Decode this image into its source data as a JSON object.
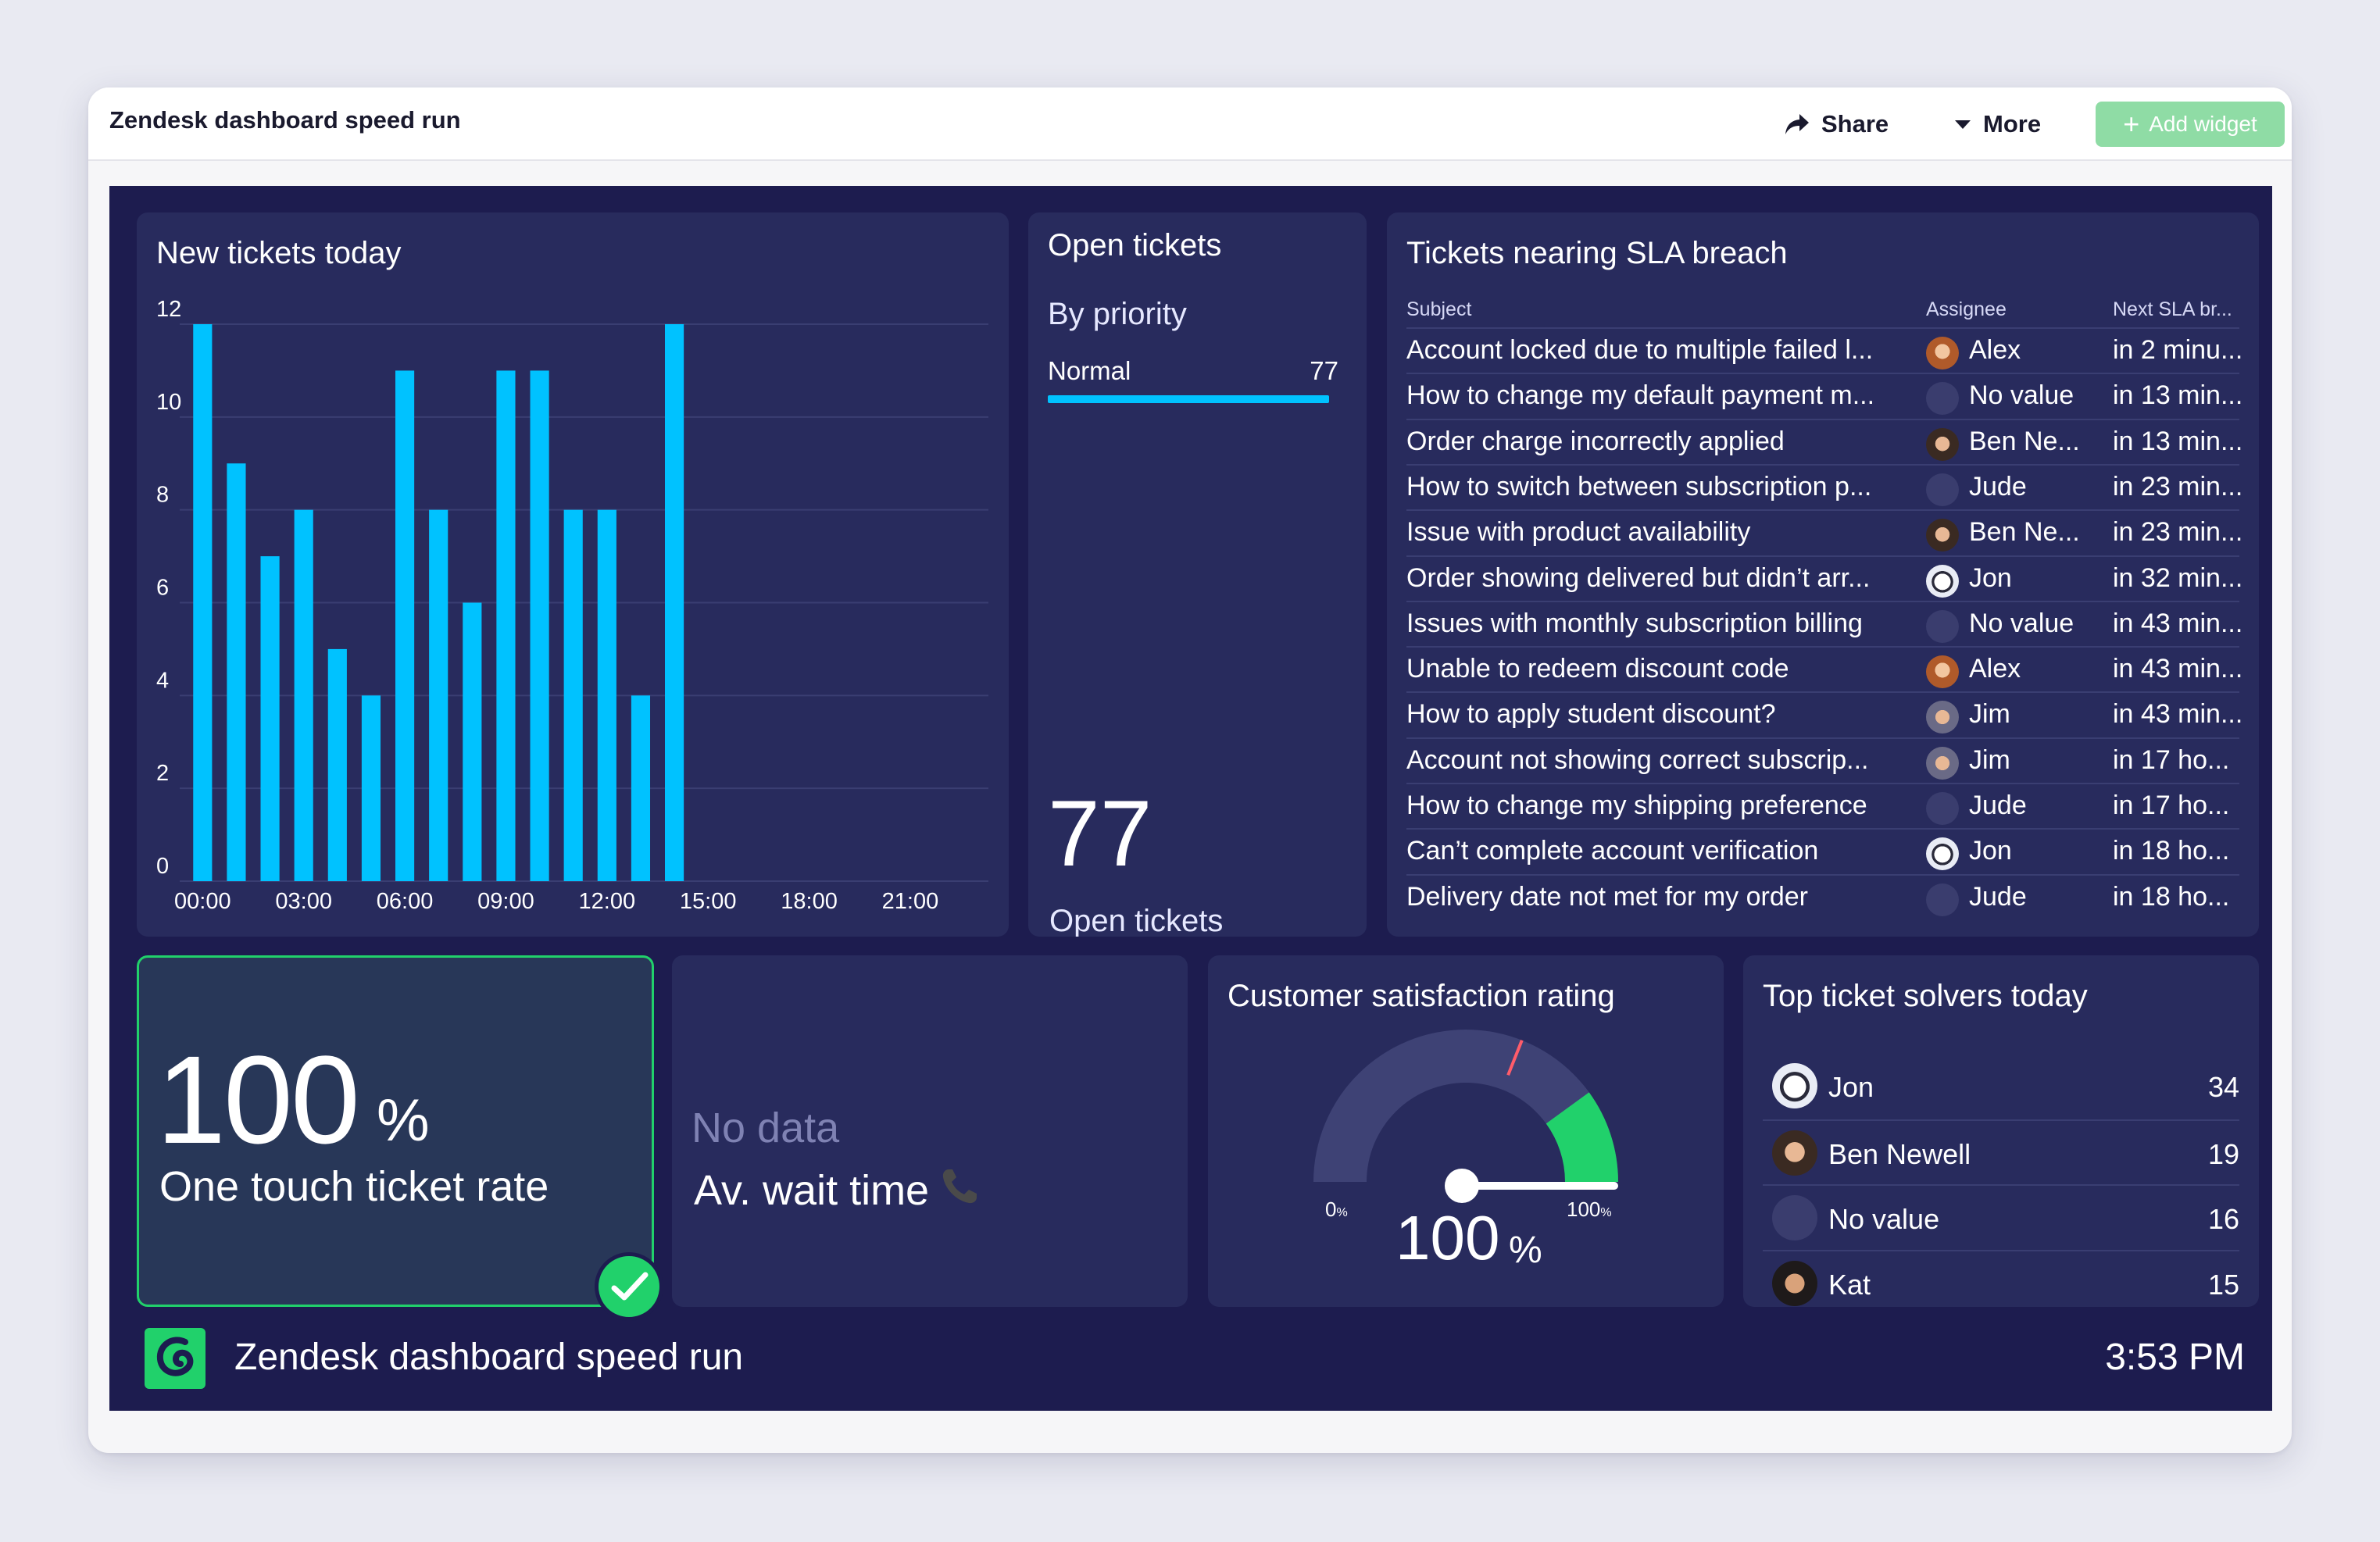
{
  "topbar": {
    "title": "Zendesk dashboard speed run",
    "share_label": "Share",
    "more_label": "More",
    "add_widget_label": "Add widget",
    "icons": {
      "share": "share-arrow-icon",
      "more": "caret-down-icon",
      "add": "plus-icon"
    }
  },
  "new_tickets": {
    "title": "New tickets today"
  },
  "chart_data": {
    "type": "bar",
    "title": "New tickets today",
    "x_tick_labels": [
      "00:00",
      "03:00",
      "06:00",
      "09:00",
      "12:00",
      "15:00",
      "18:00",
      "21:00"
    ],
    "y_tick_labels": [
      "0",
      "2",
      "4",
      "6",
      "8",
      "10",
      "12"
    ],
    "ylim": [
      0,
      12
    ],
    "grid": true,
    "categories": [
      "00:00",
      "01:00",
      "02:00",
      "03:00",
      "04:00",
      "05:00",
      "06:00",
      "07:00",
      "08:00",
      "09:00",
      "10:00",
      "11:00",
      "12:00",
      "13:00",
      "14:00",
      "15:00"
    ],
    "values": [
      12,
      9,
      7,
      8,
      5,
      4,
      11,
      8,
      6,
      11,
      11,
      8,
      8,
      4,
      12,
      0
    ],
    "bar_color": "#00c2ff"
  },
  "open_tickets": {
    "title": "Open tickets",
    "subtitle": "By priority",
    "priority_label": "Normal",
    "priority_value": "77",
    "priority_fraction": 1.0,
    "total": "77",
    "caption": "Open tickets"
  },
  "sla": {
    "title": "Tickets nearing SLA breach",
    "columns": [
      "Subject",
      "Assignee",
      "Next SLA br..."
    ],
    "rows": [
      {
        "subject": "Account locked due to multiple failed l...",
        "assignee": "Alex",
        "next": "in 2 minu...",
        "avatar": "alex"
      },
      {
        "subject": "How to change my default payment m...",
        "assignee": "No value",
        "next": "in 13 min...",
        "avatar": "none"
      },
      {
        "subject": "Order charge incorrectly applied",
        "assignee": "Ben Ne...",
        "next": "in 13 min...",
        "avatar": "ben"
      },
      {
        "subject": "How to switch between subscription p...",
        "assignee": "Jude",
        "next": "in 23 min...",
        "avatar": "none"
      },
      {
        "subject": "Issue with product availability",
        "assignee": "Ben Ne...",
        "next": "in 23 min...",
        "avatar": "ben"
      },
      {
        "subject": "Order showing delivered but didn’t arr...",
        "assignee": "Jon",
        "next": "in 32 min...",
        "avatar": "jon"
      },
      {
        "subject": "Issues with monthly subscription billing",
        "assignee": "No value",
        "next": "in 43 min...",
        "avatar": "none"
      },
      {
        "subject": "Unable to redeem discount code",
        "assignee": "Alex",
        "next": "in 43 min...",
        "avatar": "alex"
      },
      {
        "subject": "How to apply student discount?",
        "assignee": "Jim",
        "next": "in 43 min...",
        "avatar": "jim"
      },
      {
        "subject": "Account not showing correct subscrip...",
        "assignee": "Jim",
        "next": "in 17 ho...",
        "avatar": "jim"
      },
      {
        "subject": "How to change my shipping preference",
        "assignee": "Jude",
        "next": "in 17 ho...",
        "avatar": "none"
      },
      {
        "subject": "Can’t complete account verification",
        "assignee": "Jon",
        "next": "in 18 ho...",
        "avatar": "jon"
      },
      {
        "subject": "Delivery date not met for my order",
        "assignee": "Jude",
        "next": "in 18 ho...",
        "avatar": "none"
      }
    ]
  },
  "one_touch": {
    "value": "100",
    "unit": "%",
    "label": "One touch ticket rate",
    "status_color": "#21d16b",
    "icon": "check-circle-icon"
  },
  "wait_time": {
    "no_data": "No data",
    "label": "Av. wait time",
    "icon": "phone-icon"
  },
  "csat": {
    "title": "Customer satisfaction rating",
    "value": "100",
    "unit": "%",
    "min_label": "0",
    "max_label": "100",
    "min_unit": "%",
    "max_unit": "%",
    "gauge_fraction": 1.0,
    "target_fraction": 0.62,
    "green_zone_start_fraction": 0.8,
    "colors": {
      "track": "#3e4275",
      "green": "#21d16b",
      "target": "#ff5c6a"
    }
  },
  "solvers": {
    "title": "Top ticket solvers today",
    "rows": [
      {
        "name": "Jon",
        "count": "34",
        "avatar": "jon"
      },
      {
        "name": "Ben Newell",
        "count": "19",
        "avatar": "ben"
      },
      {
        "name": "No value",
        "count": "16",
        "avatar": "none"
      },
      {
        "name": "Kat",
        "count": "15",
        "avatar": "kat"
      }
    ]
  },
  "footer": {
    "title": "Zendesk dashboard speed run",
    "clock": "3:53 PM",
    "logo": "geckoboard-logo-icon"
  },
  "colors": {
    "board_bg": "#1d1c4f",
    "card_bg": "#282b5d",
    "accent": "#00c2ff",
    "success": "#21d16b"
  }
}
